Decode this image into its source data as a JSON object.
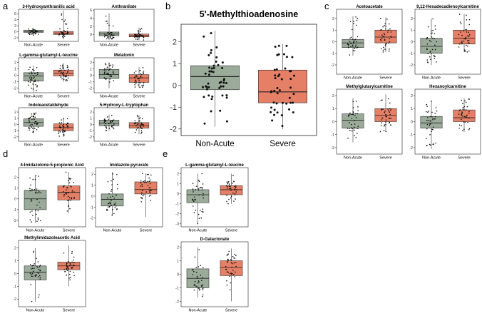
{
  "panels": [
    {
      "letter": "a"
    },
    {
      "letter": "b"
    },
    {
      "letter": "c"
    },
    {
      "letter": "d"
    },
    {
      "letter": "e"
    }
  ],
  "colors": {
    "non_acute": "#9aab99",
    "severe": "#e57f66",
    "point": "#111111",
    "frame": "#222222"
  },
  "chart_data": [
    {
      "type": "box",
      "panel": "a",
      "title": "3-Hydroxyanthranilic acid",
      "categories": [
        "Non-Acute",
        "Severe"
      ],
      "yticks": [
        -2,
        0,
        2,
        4,
        6
      ],
      "ylim": [
        -3.2,
        7.5
      ],
      "boxes": [
        {
          "name": "Non-Acute",
          "q1": -0.2,
          "median": 0.1,
          "q3": 0.5,
          "min": -1.1,
          "max": 1.3
        },
        {
          "name": "Severe",
          "q1": -0.9,
          "median": -0.4,
          "q3": 0.1,
          "min": -2.4,
          "max": 7.1
        }
      ]
    },
    {
      "type": "box",
      "panel": "a",
      "title": "Anthranilate",
      "categories": [
        "Non-Acute",
        "Severe"
      ],
      "yticks": [
        0,
        2,
        4,
        6
      ],
      "ylim": [
        -1.7,
        6.2
      ],
      "boxes": [
        {
          "name": "Non-Acute",
          "q1": -0.3,
          "median": 0.1,
          "q3": 0.6,
          "min": -1.4,
          "max": 5.2
        },
        {
          "name": "Severe",
          "q1": -0.6,
          "median": -0.3,
          "q3": 0.1,
          "min": -1.4,
          "max": 1.7
        }
      ]
    },
    {
      "type": "box",
      "panel": "a",
      "title": "L-gamma-glutamyl-L-leucine",
      "categories": [
        "Non-Acute",
        "Severe"
      ],
      "yticks": [
        -2,
        -1,
        0,
        1,
        2
      ],
      "ylim": [
        -2.7,
        2.7
      ],
      "boxes": [
        {
          "name": "Non-Acute",
          "q1": -0.9,
          "median": -0.1,
          "q3": 0.4,
          "min": -2.6,
          "max": 1.5
        },
        {
          "name": "Severe",
          "q1": -0.1,
          "median": 0.3,
          "q3": 0.8,
          "min": -1.0,
          "max": 1.9
        }
      ]
    },
    {
      "type": "box",
      "panel": "a",
      "title": "Melatonin",
      "categories": [
        "Non-Acute",
        "Severe"
      ],
      "yticks": [
        -2,
        -1,
        0,
        1,
        2
      ],
      "ylim": [
        -2.7,
        2.7
      ],
      "boxes": [
        {
          "name": "Non-Acute",
          "q1": -0.5,
          "median": 0.1,
          "q3": 0.9,
          "min": -2.0,
          "max": 2.0
        },
        {
          "name": "Severe",
          "q1": -1.1,
          "median": -0.4,
          "q3": 0.1,
          "min": -1.9,
          "max": 1.3
        }
      ]
    },
    {
      "type": "box",
      "panel": "a",
      "title": "Indoleacetaldehyde",
      "categories": [
        "Non-Acute",
        "Severe"
      ],
      "yticks": [
        -2,
        -1,
        0,
        1,
        2
      ],
      "ylim": [
        -2.7,
        2.7
      ],
      "boxes": [
        {
          "name": "Non-Acute",
          "q1": -0.3,
          "median": 0.3,
          "q3": 0.9,
          "min": -1.4,
          "max": 1.9
        },
        {
          "name": "Severe",
          "q1": -1.0,
          "median": -0.5,
          "q3": 0.1,
          "min": -2.0,
          "max": 1.1
        }
      ]
    },
    {
      "type": "box",
      "panel": "a",
      "title": "5-Hydroxy-L-tryptophan",
      "categories": [
        "Non-Acute",
        "Severe"
      ],
      "yticks": [
        -2,
        -1,
        0,
        1,
        2
      ],
      "ylim": [
        -2.7,
        2.7
      ],
      "boxes": [
        {
          "name": "Non-Acute",
          "q1": -0.2,
          "median": 0.2,
          "q3": 0.7,
          "min": -1.0,
          "max": 1.6
        },
        {
          "name": "Severe",
          "q1": -0.6,
          "median": -0.2,
          "q3": 0.3,
          "min": -1.6,
          "max": 1.5
        }
      ]
    },
    {
      "type": "box",
      "panel": "b",
      "title": "5'-Methylthioadenosine",
      "categories": [
        "Non-Acute",
        "Severe"
      ],
      "yticks": [
        -2,
        -1,
        0,
        1,
        2
      ],
      "ylim": [
        -2.3,
        2.8
      ],
      "boxes": [
        {
          "name": "Non-Acute",
          "q1": -0.2,
          "median": 0.4,
          "q3": 0.9,
          "min": -1.9,
          "max": 2.5
        },
        {
          "name": "Severe",
          "q1": -0.8,
          "median": -0.3,
          "q3": 0.7,
          "min": -2.0,
          "max": 1.9
        }
      ]
    },
    {
      "type": "box",
      "panel": "c",
      "title": "Acetoacetate",
      "categories": [
        "Non-Acute",
        "Severe"
      ],
      "yticks": [
        -2,
        -1,
        0,
        1,
        2
      ],
      "ylim": [
        -2.8,
        2.8
      ],
      "boxes": [
        {
          "name": "Non-Acute",
          "q1": -0.5,
          "median": -0.1,
          "q3": 0.2,
          "min": -1.2,
          "max": 2.2
        },
        {
          "name": "Severe",
          "q1": -0.1,
          "median": 0.4,
          "q3": 1.0,
          "min": -0.9,
          "max": 2.1
        }
      ]
    },
    {
      "type": "box",
      "panel": "c",
      "title": "9,12-Hexadecadienoylcarnitine",
      "categories": [
        "Non-Acute",
        "Severe"
      ],
      "yticks": [
        -2,
        -1,
        0,
        1,
        2
      ],
      "ylim": [
        -2.8,
        2.8
      ],
      "boxes": [
        {
          "name": "Non-Acute",
          "q1": -1.0,
          "median": -0.4,
          "q3": 0.3,
          "min": -2.0,
          "max": 2.0
        },
        {
          "name": "Severe",
          "q1": -0.2,
          "median": 0.3,
          "q3": 1.0,
          "min": -0.9,
          "max": 2.4
        }
      ]
    },
    {
      "type": "box",
      "panel": "c",
      "title": "Methylglutarylcarnitine",
      "categories": [
        "Non-Acute",
        "Severe"
      ],
      "yticks": [
        -2,
        -1,
        0,
        1,
        2
      ],
      "ylim": [
        -2.5,
        2.5
      ],
      "boxes": [
        {
          "name": "Non-Acute",
          "q1": -0.5,
          "median": 0.1,
          "q3": 0.6,
          "min": -1.6,
          "max": 1.8
        },
        {
          "name": "Severe",
          "q1": 0.0,
          "median": 0.5,
          "q3": 1.0,
          "min": -0.8,
          "max": 2.1
        }
      ]
    },
    {
      "type": "box",
      "panel": "c",
      "title": "Hexanoylcarnitine",
      "categories": [
        "Non-Acute",
        "Severe"
      ],
      "yticks": [
        -2,
        -1,
        0,
        1,
        2
      ],
      "ylim": [
        -2.5,
        2.5
      ],
      "boxes": [
        {
          "name": "Non-Acute",
          "q1": -0.5,
          "median": -0.1,
          "q3": 0.4,
          "min": -2.1,
          "max": 1.6
        },
        {
          "name": "Severe",
          "q1": 0.0,
          "median": 0.3,
          "q3": 0.9,
          "min": -0.8,
          "max": 1.8
        }
      ]
    },
    {
      "type": "box",
      "panel": "d",
      "title": "4-Imidazolone-5-propionic Acid",
      "categories": [
        "Non-Acute",
        "Severe"
      ],
      "yticks": [
        -2,
        -1,
        0,
        1,
        2
      ],
      "ylim": [
        -2.6,
        2.9
      ],
      "boxes": [
        {
          "name": "Non-Acute",
          "q1": -1.0,
          "median": 0.0,
          "q3": 0.8,
          "min": -2.2,
          "max": 2.2
        },
        {
          "name": "Severe",
          "q1": -0.1,
          "median": 0.6,
          "q3": 1.2,
          "min": -1.3,
          "max": 2.5
        }
      ]
    },
    {
      "type": "box",
      "panel": "d",
      "title": "Imidazole-pyruvate",
      "categories": [
        "Non-Acute",
        "Severe"
      ],
      "yticks": [
        -2,
        -1,
        0,
        1,
        2
      ],
      "ylim": [
        -2.8,
        2.6
      ],
      "boxes": [
        {
          "name": "Non-Acute",
          "q1": -0.9,
          "median": -0.3,
          "q3": 0.2,
          "min": -1.8,
          "max": 2.2
        },
        {
          "name": "Severe",
          "q1": 0.2,
          "median": 0.6,
          "q3": 1.3,
          "min": -1.9,
          "max": 2.1
        }
      ]
    },
    {
      "type": "box",
      "panel": "d",
      "title": "Methylimidazoleacetic Acid",
      "categories": [
        "Non-Acute",
        "Severe"
      ],
      "yticks": [
        -2,
        -1,
        0,
        1,
        2
      ],
      "ylim": [
        -2.6,
        2.6
      ],
      "boxes": [
        {
          "name": "Non-Acute",
          "q1": -0.5,
          "median": 0.1,
          "q3": 0.6,
          "min": -2.2,
          "max": 2.0
        },
        {
          "name": "Severe",
          "q1": 0.3,
          "median": 0.6,
          "q3": 0.9,
          "min": -1.0,
          "max": 2.2
        }
      ]
    },
    {
      "type": "box",
      "panel": "e",
      "title": "L-gamma-glutamyl-L-leucine",
      "categories": [
        "Non-Acute",
        "Severe"
      ],
      "yticks": [
        -3,
        -2,
        -1,
        0,
        1,
        2
      ],
      "ylim": [
        -3.3,
        2.6
      ],
      "boxes": [
        {
          "name": "Non-Acute",
          "q1": -0.9,
          "median": -0.1,
          "q3": 0.4,
          "min": -3.0,
          "max": 2.0
        },
        {
          "name": "Severe",
          "q1": -0.1,
          "median": 0.4,
          "q3": 0.8,
          "min": -1.0,
          "max": 2.0
        }
      ]
    },
    {
      "type": "box",
      "panel": "e",
      "title": "D-Galactonate",
      "categories": [
        "Non-Acute",
        "Severe"
      ],
      "yticks": [
        -2,
        -1,
        0,
        1,
        2
      ],
      "ylim": [
        -2.4,
        2.4
      ],
      "boxes": [
        {
          "name": "Non-Acute",
          "q1": -1.0,
          "median": -0.3,
          "q3": 0.4,
          "min": -1.7,
          "max": 2.0
        },
        {
          "name": "Severe",
          "q1": -0.1,
          "median": 0.5,
          "q3": 1.0,
          "min": -2.0,
          "max": 1.9
        }
      ]
    }
  ]
}
